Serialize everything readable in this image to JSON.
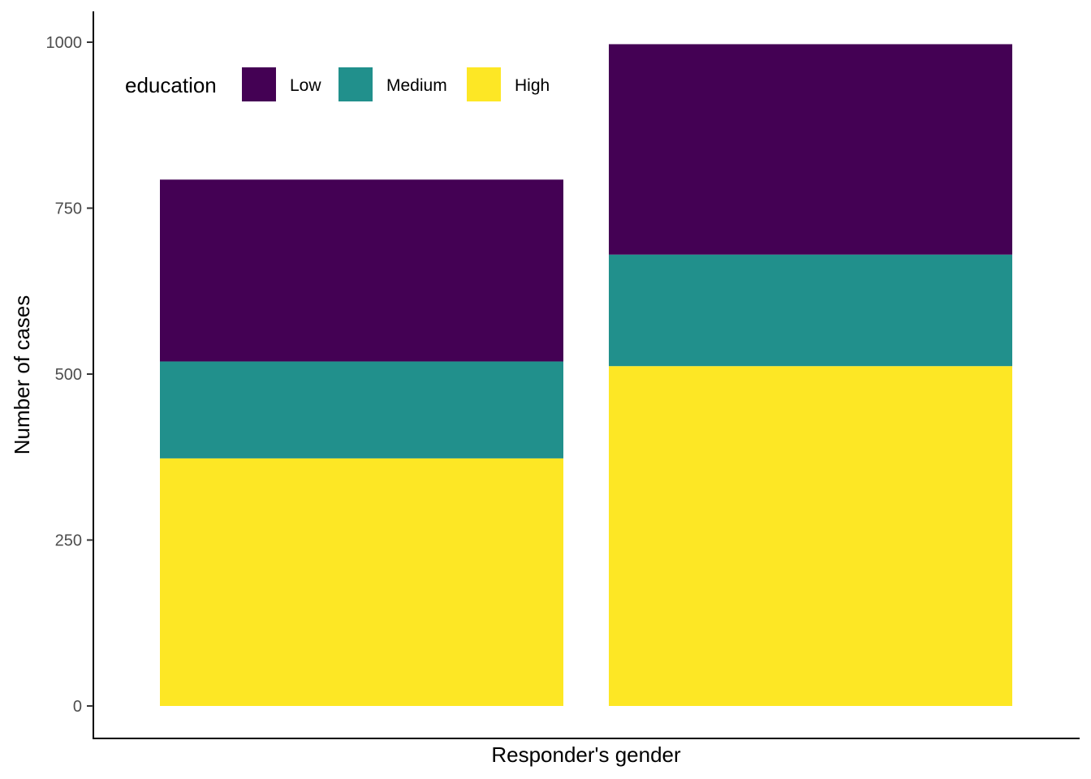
{
  "chart_data": {
    "type": "bar",
    "stacked": true,
    "categories": [
      "",
      ""
    ],
    "series": [
      {
        "name": "High",
        "values": [
          373,
          512
        ],
        "color": "#FDE725"
      },
      {
        "name": "Medium",
        "values": [
          146,
          168
        ],
        "color": "#21908C"
      },
      {
        "name": "Low",
        "values": [
          274,
          317
        ],
        "color": "#440154"
      }
    ],
    "xlabel": "Responder's gender",
    "ylabel": "Number of cases",
    "ylim": [
      0,
      1000
    ],
    "yticks": [
      0,
      250,
      500,
      750,
      1000
    ],
    "grid": false,
    "legend": {
      "title": "education",
      "position": "top-left inside",
      "order": [
        "Low",
        "Medium",
        "High"
      ]
    }
  }
}
